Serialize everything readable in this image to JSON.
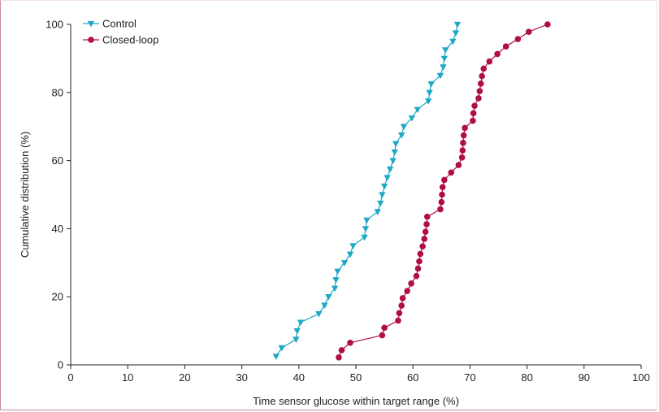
{
  "chart_data": {
    "type": "line",
    "title": "",
    "xlabel": "Time sensor glucose within target range (%)",
    "ylabel": "Cumulative distribution (%)",
    "xlim": [
      0,
      100
    ],
    "ylim": [
      0,
      100
    ],
    "xticks": [
      0,
      10,
      20,
      30,
      40,
      50,
      60,
      70,
      80,
      90,
      100
    ],
    "yticks": [
      0,
      20,
      40,
      60,
      80,
      100
    ],
    "grid": false,
    "legend_position": "top-left",
    "series": [
      {
        "name": "Control",
        "color": "#1ea8c6",
        "marker": "triangle-down",
        "points": [
          [
            36.0,
            2.5
          ],
          [
            37.0,
            5.0
          ],
          [
            39.5,
            7.5
          ],
          [
            39.7,
            10.0
          ],
          [
            40.3,
            12.5
          ],
          [
            43.5,
            15.0
          ],
          [
            44.5,
            17.5
          ],
          [
            45.2,
            20.0
          ],
          [
            46.3,
            22.5
          ],
          [
            46.5,
            25.0
          ],
          [
            46.8,
            27.5
          ],
          [
            48.0,
            30.0
          ],
          [
            49.0,
            32.5
          ],
          [
            49.5,
            35.0
          ],
          [
            51.5,
            37.5
          ],
          [
            51.7,
            40.0
          ],
          [
            51.9,
            42.5
          ],
          [
            53.8,
            45.0
          ],
          [
            54.3,
            47.5
          ],
          [
            54.6,
            50.0
          ],
          [
            55.0,
            52.5
          ],
          [
            55.5,
            55.0
          ],
          [
            56.0,
            57.5
          ],
          [
            56.5,
            60.0
          ],
          [
            56.8,
            62.5
          ],
          [
            57.0,
            65.0
          ],
          [
            58.0,
            67.5
          ],
          [
            58.4,
            70.0
          ],
          [
            59.8,
            72.5
          ],
          [
            60.8,
            75.0
          ],
          [
            62.7,
            77.5
          ],
          [
            62.9,
            80.0
          ],
          [
            63.2,
            82.5
          ],
          [
            64.8,
            85.0
          ],
          [
            65.3,
            87.5
          ],
          [
            65.5,
            90.0
          ],
          [
            65.7,
            92.5
          ],
          [
            67.0,
            95.0
          ],
          [
            67.5,
            97.5
          ],
          [
            67.8,
            100.0
          ]
        ]
      },
      {
        "name": "Closed-loop",
        "color": "#b0103f",
        "marker": "circle",
        "points": [
          [
            47.0,
            2.2
          ],
          [
            47.5,
            4.3
          ],
          [
            49.0,
            6.5
          ],
          [
            54.6,
            8.7
          ],
          [
            55.0,
            10.9
          ],
          [
            57.4,
            13.0
          ],
          [
            57.6,
            15.2
          ],
          [
            58.0,
            17.4
          ],
          [
            58.2,
            19.6
          ],
          [
            59.0,
            21.7
          ],
          [
            59.7,
            23.9
          ],
          [
            60.6,
            26.1
          ],
          [
            60.9,
            28.3
          ],
          [
            61.1,
            30.4
          ],
          [
            61.3,
            32.6
          ],
          [
            61.7,
            34.8
          ],
          [
            62.0,
            37.0
          ],
          [
            62.2,
            39.1
          ],
          [
            62.4,
            41.3
          ],
          [
            62.5,
            43.5
          ],
          [
            64.8,
            45.7
          ],
          [
            65.0,
            47.8
          ],
          [
            65.1,
            50.0
          ],
          [
            65.2,
            52.2
          ],
          [
            65.5,
            54.3
          ],
          [
            66.7,
            56.5
          ],
          [
            68.0,
            58.7
          ],
          [
            68.6,
            60.9
          ],
          [
            68.7,
            63.0
          ],
          [
            68.8,
            65.2
          ],
          [
            68.9,
            67.4
          ],
          [
            69.1,
            69.6
          ],
          [
            70.5,
            71.7
          ],
          [
            70.6,
            73.9
          ],
          [
            70.8,
            76.1
          ],
          [
            71.5,
            78.3
          ],
          [
            71.7,
            80.4
          ],
          [
            71.9,
            82.6
          ],
          [
            72.1,
            84.8
          ],
          [
            72.4,
            87.0
          ],
          [
            73.4,
            89.1
          ],
          [
            74.8,
            91.3
          ],
          [
            76.3,
            93.5
          ],
          [
            78.4,
            95.7
          ],
          [
            80.3,
            97.8
          ],
          [
            83.6,
            100.0
          ]
        ]
      }
    ]
  }
}
